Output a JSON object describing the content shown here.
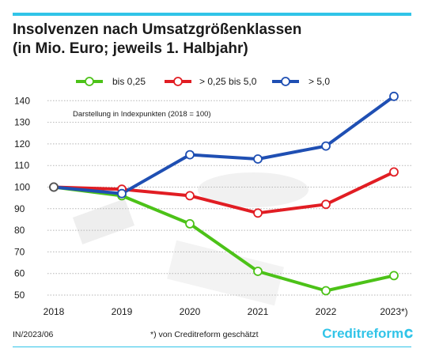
{
  "header": {
    "title_line1": "Insolvenzen nach Umsatzgrößenklassen",
    "title_line2": "(in Mio. Euro; jeweils 1. Halbjahr)"
  },
  "chart_data": {
    "type": "line",
    "title": "Insolvenzen nach Umsatzgrößenklassen (in Mio. Euro; jeweils 1. Halbjahr)",
    "annotation": "Darstellung in Indexpunkten (2018 = 100)",
    "categories": [
      "2018",
      "2019",
      "2020",
      "2021",
      "2022",
      "2023*)"
    ],
    "series": [
      {
        "name": "bis 0,25",
        "color": "#4cc218",
        "values": [
          100,
          96,
          83,
          61,
          52,
          59
        ]
      },
      {
        "name": "> 0,25 bis 5,0",
        "color": "#e11d23",
        "values": [
          100,
          99,
          96,
          88,
          92,
          107
        ]
      },
      {
        "name": "> 5,0",
        "color": "#1f4fb3",
        "values": [
          100,
          97,
          115,
          113,
          119,
          142
        ]
      }
    ],
    "ylim": [
      50,
      145
    ],
    "yticks": [
      50,
      60,
      70,
      80,
      90,
      100,
      110,
      120,
      130,
      140
    ],
    "xlabel": "",
    "ylabel": "",
    "grid": true,
    "legend_position": "top"
  },
  "footer": {
    "code": "IN/2023/06",
    "note": "*) von Creditreform geschätzt",
    "logo": "Creditreform",
    "logo_icon": "creditreform-c-icon"
  }
}
